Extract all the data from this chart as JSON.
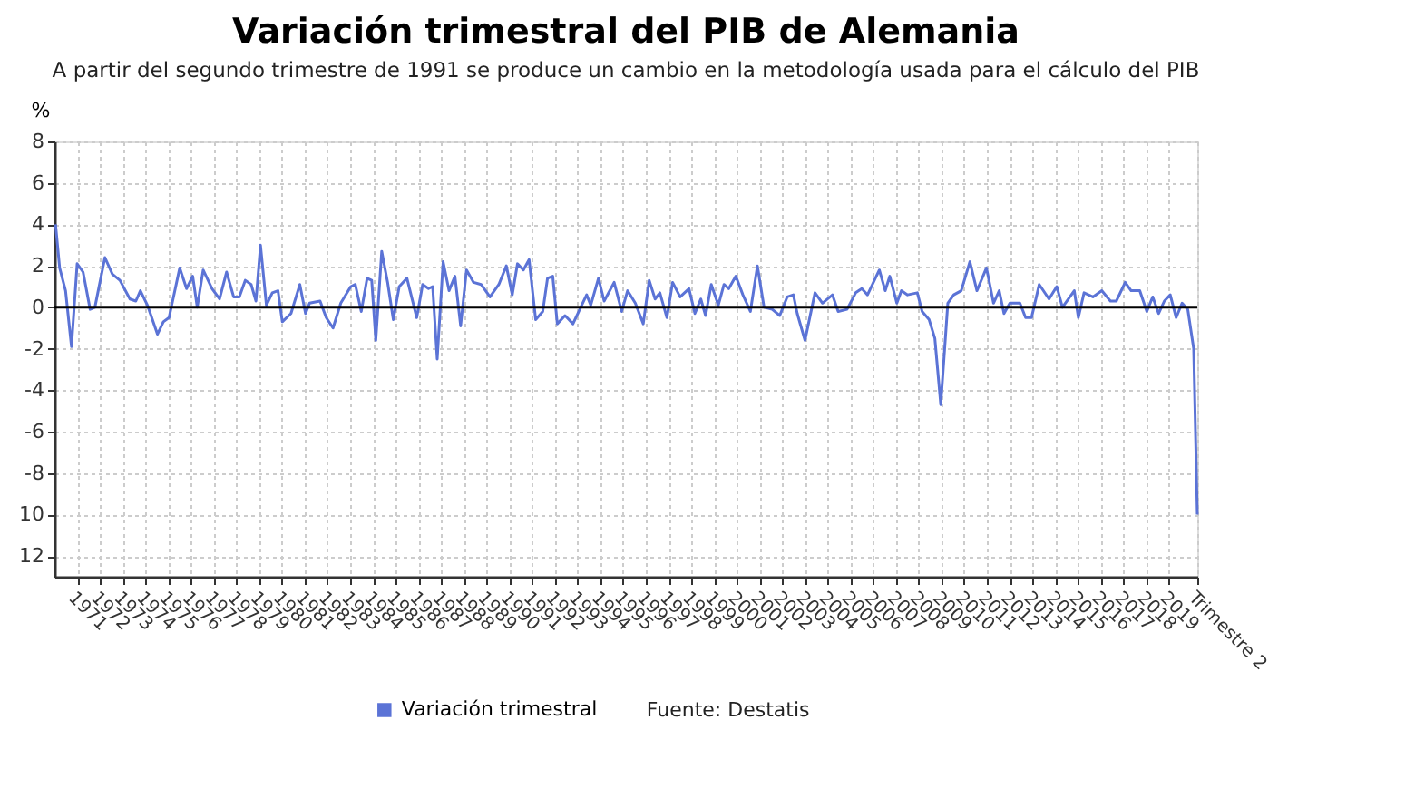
{
  "chart_data": {
    "type": "line",
    "title": "Variación trimestral del PIB de Alemania",
    "subtitle": "A partir del segundo trimestre de 1991 se produce un cambio en la metodología usada para el cálculo del PIB",
    "ylabel": "%",
    "annotations": [
      "Fuente: Destatis"
    ],
    "xlim": [
      1970,
      2020.25
    ],
    "xticks": [
      1971,
      1972,
      1973,
      1974,
      1975,
      1976,
      1977,
      1978,
      1979,
      1980,
      1981,
      1982,
      1983,
      1984,
      1985,
      1986,
      1987,
      1988,
      1989,
      1990,
      1991,
      1992,
      1993,
      1994,
      1995,
      1996,
      1997,
      1998,
      1999,
      2000,
      2001,
      2002,
      2003,
      2004,
      2005,
      2006,
      2007,
      2008,
      2009,
      2010,
      2011,
      2012,
      2013,
      2014,
      2015,
      2016,
      2017,
      2018,
      2019,
      {
        "value": 2020.25,
        "label": "Trimestre 2"
      }
    ],
    "ylim": [
      -13,
      8
    ],
    "yticks": [
      8,
      6,
      4,
      2,
      0,
      -2,
      -4,
      -6,
      -8,
      {
        "value": -10,
        "label": "10"
      },
      {
        "value": -12,
        "label": "12"
      }
    ],
    "grid": true,
    "legend": "bottom",
    "ref_lines": [
      {
        "axis": "y",
        "value": 0,
        "color": "#000000"
      }
    ],
    "series": [
      {
        "name": "Variación trimestral",
        "color": "#5b73d6",
        "x": [
          1970.05,
          1970.23,
          1970.49,
          1970.75,
          1971.0,
          1971.26,
          1971.57,
          1971.78,
          1972.22,
          1972.55,
          1972.88,
          1973.32,
          1973.58,
          1973.78,
          1974.09,
          1974.53,
          1974.79,
          1975.04,
          1975.51,
          1975.81,
          1976.08,
          1976.28,
          1976.54,
          1976.93,
          1977.26,
          1977.57,
          1977.88,
          1978.13,
          1978.39,
          1978.65,
          1978.86,
          1979.06,
          1979.32,
          1979.58,
          1979.83,
          1980.02,
          1980.4,
          1980.79,
          1981.04,
          1981.22,
          1981.68,
          1981.95,
          1982.25,
          1982.59,
          1983.03,
          1983.23,
          1983.49,
          1983.75,
          1983.95,
          1984.13,
          1984.39,
          1984.65,
          1984.9,
          1985.16,
          1985.5,
          1985.93,
          1986.19,
          1986.45,
          1986.63,
          1986.83,
          1987.09,
          1987.35,
          1987.61,
          1987.86,
          1988.12,
          1988.43,
          1988.76,
          1989.15,
          1989.54,
          1989.87,
          1990.13,
          1990.36,
          1990.62,
          1990.87,
          1991.16,
          1991.47,
          1991.68,
          1991.91,
          1992.11,
          1992.45,
          1992.8,
          1993.14,
          1993.4,
          1993.58,
          1993.92,
          1994.17,
          1994.61,
          1994.94,
          1995.2,
          1995.54,
          1995.89,
          1996.15,
          1996.41,
          1996.62,
          1996.93,
          1997.18,
          1997.51,
          1997.9,
          1998.16,
          1998.42,
          1998.63,
          1998.88,
          1999.19,
          1999.44,
          1999.65,
          1999.96,
          2000.27,
          2000.6,
          2000.91,
          2001.2,
          2001.56,
          2001.89,
          2002.22,
          2002.49,
          2002.66,
          2003.0,
          2003.44,
          2003.77,
          2004.21,
          2004.46,
          2004.85,
          2005.23,
          2005.5,
          2005.75,
          2006.27,
          2006.53,
          2006.73,
          2007.04,
          2007.24,
          2007.51,
          2007.94,
          2008.15,
          2008.46,
          2008.71,
          2008.97,
          2009.28,
          2009.54,
          2009.87,
          2010.25,
          2010.56,
          2010.98,
          2011.29,
          2011.54,
          2011.75,
          2012.01,
          2012.45,
          2012.7,
          2012.96,
          2013.3,
          2013.73,
          2014.07,
          2014.32,
          2014.84,
          2015.02,
          2015.27,
          2015.66,
          2016.05,
          2016.43,
          2016.69,
          2017.08,
          2017.34,
          2017.72,
          2018.03,
          2018.29,
          2018.55,
          2018.8,
          2019.06,
          2019.32,
          2019.58,
          2019.83,
          2020.09,
          2020.25
        ],
        "values": [
          4.0,
          1.9,
          0.8,
          -1.9,
          2.1,
          1.7,
          -0.1,
          0,
          2.4,
          1.6,
          1.3,
          0.4,
          0.3,
          0.8,
          0.1,
          -1.3,
          -0.7,
          -0.5,
          1.9,
          0.9,
          1.5,
          0,
          1.8,
          0.9,
          0.4,
          1.7,
          0.5,
          0.5,
          1.3,
          1.1,
          0.3,
          3.0,
          0.1,
          0.7,
          0.8,
          -0.7,
          -0.3,
          1.1,
          -0.3,
          0.2,
          0.3,
          -0.5,
          -1.0,
          0.2,
          1.0,
          1.1,
          -0.2,
          1.4,
          1.3,
          -1.6,
          2.7,
          1.2,
          -0.6,
          1.0,
          1.4,
          -0.5,
          1.1,
          0.9,
          1.0,
          -2.5,
          2.2,
          0.8,
          1.5,
          -0.9,
          1.8,
          1.2,
          1.1,
          0.5,
          1.1,
          2.0,
          0.6,
          2.1,
          1.8,
          2.3,
          -0.6,
          -0.2,
          1.4,
          1.5,
          -0.8,
          -0.4,
          -0.8,
          0,
          0.6,
          0.1,
          1.4,
          0.3,
          1.2,
          -0.2,
          0.8,
          0.2,
          -0.8,
          1.3,
          0.4,
          0.7,
          -0.5,
          1.2,
          0.5,
          0.9,
          -0.3,
          0.4,
          -0.4,
          1.1,
          0.1,
          1.1,
          0.9,
          1.5,
          0.6,
          -0.2,
          2.0,
          0,
          -0.1,
          -0.4,
          0.5,
          0.6,
          -0.3,
          -1.6,
          0.7,
          0.2,
          0.6,
          -0.2,
          -0.1,
          0.7,
          0.9,
          0.6,
          1.8,
          0.8,
          1.5,
          0.2,
          0.8,
          0.6,
          0.7,
          -0.2,
          -0.6,
          -1.5,
          -4.7,
          0.2,
          0.6,
          0.8,
          2.2,
          0.8,
          1.9,
          0.2,
          0.8,
          -0.3,
          0.2,
          0.2,
          -0.5,
          -0.5,
          1.1,
          0.4,
          1.0,
          0,
          0.8,
          -0.5,
          0.7,
          0.5,
          0.8,
          0.3,
          0.3,
          1.2,
          0.8,
          0.8,
          -0.2,
          0.5,
          -0.3,
          0.3,
          0.6,
          -0.5,
          0.2,
          -0.1,
          -2.0,
          -10.0
        ]
      }
    ]
  }
}
